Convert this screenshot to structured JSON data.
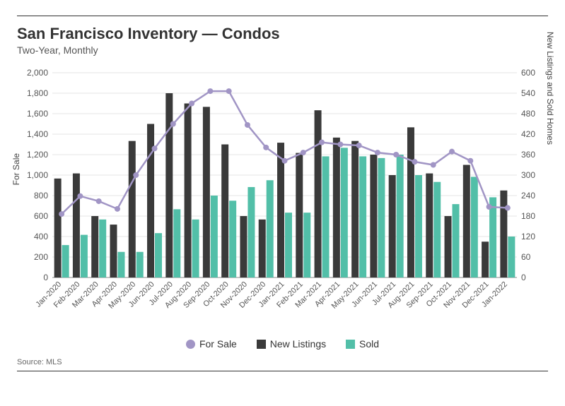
{
  "title": "San Francisco Inventory — Condos",
  "subtitle": "Two-Year, Monthly",
  "source": "Source:  MLS",
  "legend": {
    "forSale": "For Sale",
    "newListings": "New Listings",
    "sold": "Sold"
  },
  "axis": {
    "leftLabel": "For Sale",
    "rightLabel": "New Listings and Sold Homes",
    "leftMax": 2000,
    "leftStep": 200,
    "rightMax": 600,
    "rightStep": 60
  },
  "colors": {
    "forSale": "#a195c5",
    "newListings": "#3a3a3a",
    "sold": "#52bfa8",
    "grid": "#cccccc",
    "text": "#555555",
    "background": "#ffffff"
  },
  "chart": {
    "type": "bar+line",
    "barWidth": 0.38,
    "markerRadius": 4,
    "lineWidth": 2.5
  },
  "categories": [
    "Jan-2020",
    "Feb-2020",
    "Mar-2020",
    "Apr-2020",
    "May-2020",
    "Jun-2020",
    "Jul-2020",
    "Aug-2020",
    "Sep-2020",
    "Oct-2020",
    "Nov-2020",
    "Dec-2020",
    "Jan-2021",
    "Feb-2021",
    "Mar-2021",
    "Apr-2021",
    "May-2021",
    "Jun-2021",
    "Jul-2021",
    "Aug-2021",
    "Sep-2021",
    "Oct-2021",
    "Nov-2021",
    "Dec-2021",
    "Jan-2022"
  ],
  "series": {
    "newListings": [
      290,
      305,
      180,
      155,
      400,
      450,
      540,
      510,
      500,
      390,
      180,
      170,
      395,
      365,
      490,
      410,
      400,
      360,
      300,
      440,
      305,
      180,
      330,
      105,
      255
    ],
    "sold": [
      95,
      125,
      170,
      75,
      75,
      130,
      200,
      170,
      240,
      225,
      265,
      285,
      190,
      190,
      355,
      380,
      355,
      350,
      360,
      300,
      280,
      215,
      295,
      235,
      120
    ],
    "forSale": [
      620,
      795,
      745,
      670,
      1000,
      1260,
      1500,
      1700,
      1820,
      1820,
      1490,
      1270,
      1140,
      1220,
      1320,
      1300,
      1290,
      1220,
      1200,
      1130,
      1100,
      1230,
      1140,
      690,
      680
    ]
  }
}
